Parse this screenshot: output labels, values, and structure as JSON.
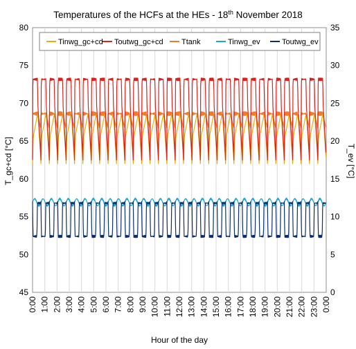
{
  "chart_data": {
    "type": "line",
    "title": "Temperatures of the HCFs at the HEs - 18",
    "title_superscript": "th",
    "title_suffix": " November 2018",
    "xlabel": "Hour of the day",
    "ylabel_left": "T_gc+cd [°C]",
    "ylabel_right": "T_ev [°C]",
    "ylim_left": [
      45,
      80
    ],
    "ylim_right": [
      0,
      35
    ],
    "yticks_left": [
      45,
      50,
      55,
      60,
      65,
      70,
      75,
      80
    ],
    "yticks_right": [
      0,
      5,
      10,
      15,
      20,
      25,
      30,
      35
    ],
    "x_ticks": [
      "0:00",
      "1:00",
      "2:00",
      "3:00",
      "4:00",
      "5:00",
      "6:00",
      "7:00",
      "8:00",
      "9:00",
      "10:00",
      "11:00",
      "12:00",
      "13:00",
      "14:00",
      "15:00",
      "16:00",
      "17:00",
      "18:00",
      "19:00",
      "20:00",
      "21:00",
      "22:00",
      "23:00",
      "0:00"
    ],
    "x_range_hours": [
      0,
      24
    ],
    "grid": "vertical",
    "legend_placement": "top",
    "cycles_per_day": 35,
    "series": [
      {
        "name": "Tinwg_gc+cd",
        "axis": "left",
        "color": "#F2A900",
        "low": 62.0,
        "high": 68.5
      },
      {
        "name": "Toutwg_gc+cd",
        "axis": "left",
        "color": "#E0201B",
        "low": 62.5,
        "high": 73.5
      },
      {
        "name": "Ttank",
        "axis": "left",
        "color": "#F07C2A",
        "low": 66.5,
        "high": 69.0
      },
      {
        "name": "Tinwg_ev",
        "axis": "right",
        "color": "#1AA7D8",
        "low": 11.2,
        "high": 12.5
      },
      {
        "name": "Toutwg_ev",
        "axis": "right",
        "color": "#0B2F6B",
        "low": 7.0,
        "high": 12.0
      }
    ]
  }
}
